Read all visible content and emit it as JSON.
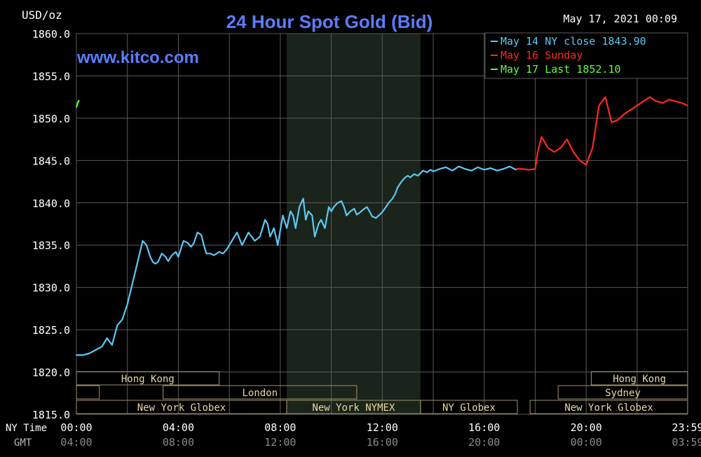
{
  "header": {
    "units": "USD/oz",
    "title": "24 Hour Spot Gold (Bid)",
    "timestamp": "May 17, 2021 00:09",
    "website": "www.kitco.com"
  },
  "legend": [
    {
      "label": "May 14 NY close 1843.90",
      "color": "#5bc8f5"
    },
    {
      "label": "May 16 Sunday",
      "color": "#ff2a1a"
    },
    {
      "label": "May 17 Last 1852.10",
      "color": "#5dff3a"
    }
  ],
  "colors": {
    "background": "#000000",
    "grid": "#5a5a5a",
    "shaded_session": "#1a241a",
    "title": "#5a7dff",
    "website": "#5a7dff",
    "session_border": "#a0946a",
    "session_text": "#e8d8a0",
    "axis_text": "#ffffff",
    "gmt_text": "#8a8a8a"
  },
  "axis_labels": {
    "ny_time": "NY Time",
    "gmt": "GMT"
  },
  "sessions": [
    {
      "label": "Hong Kong",
      "start": 0.0,
      "end": 5.6,
      "row": 0
    },
    {
      "label": "",
      "start": 0.0,
      "end": 0.9,
      "row": 1
    },
    {
      "label": "London",
      "start": 3.4,
      "end": 11.0,
      "row": 1
    },
    {
      "label": "New York Globex",
      "start": 0.0,
      "end": 8.25,
      "row": 2
    },
    {
      "label": "New York NYMEX",
      "start": 8.25,
      "end": 13.5,
      "row": 2
    },
    {
      "label": "NY Globex",
      "start": 13.5,
      "end": 17.3,
      "row": 2
    },
    {
      "label": "Hong Kong",
      "start": 20.2,
      "end": 23.98,
      "row": 0
    },
    {
      "label": "Sydney",
      "start": 18.9,
      "end": 23.98,
      "row": 1
    },
    {
      "label": "New York Globex",
      "start": 17.8,
      "end": 23.98,
      "row": 2
    }
  ],
  "chart_data": {
    "type": "line",
    "title": "24 Hour Spot Gold (Bid)",
    "ylabel": "USD/oz",
    "ylim": [
      1815.0,
      1860.0
    ],
    "xlim": [
      0,
      23.983
    ],
    "y_ticks": [
      "1860.0",
      "1855.0",
      "1850.0",
      "1845.0",
      "1840.0",
      "1835.0",
      "1830.0",
      "1825.0",
      "1820.0",
      "1815.0"
    ],
    "x_ticks_ny": [
      "00:00",
      "04:00",
      "08:00",
      "12:00",
      "16:00",
      "20:00",
      "23:59"
    ],
    "x_ticks_gmt": [
      "04:00",
      "08:00",
      "12:00",
      "16:00",
      "20:00",
      "00:00",
      "03:59"
    ],
    "shaded_region": [
      8.25,
      13.5
    ],
    "grid": true,
    "legend_position": "top-right",
    "series": [
      {
        "name": "May 14 NY close 1843.90",
        "color": "#5bc8f5",
        "x": [
          0.0,
          0.25,
          0.5,
          0.75,
          1.0,
          1.2,
          1.4,
          1.6,
          1.8,
          2.0,
          2.2,
          2.4,
          2.6,
          2.75,
          2.9,
          3.0,
          3.1,
          3.2,
          3.35,
          3.5,
          3.6,
          3.75,
          3.9,
          4.0,
          4.2,
          4.35,
          4.5,
          4.6,
          4.75,
          4.9,
          5.0,
          5.1,
          5.25,
          5.4,
          5.5,
          5.6,
          5.75,
          5.9,
          6.1,
          6.3,
          6.5,
          6.75,
          7.0,
          7.2,
          7.4,
          7.5,
          7.6,
          7.75,
          7.9,
          8.0,
          8.1,
          8.25,
          8.4,
          8.5,
          8.6,
          8.75,
          8.9,
          9.0,
          9.1,
          9.25,
          9.35,
          9.5,
          9.6,
          9.75,
          9.9,
          10.0,
          10.1,
          10.25,
          10.4,
          10.5,
          10.6,
          10.75,
          10.9,
          11.0,
          11.1,
          11.25,
          11.4,
          11.5,
          11.6,
          11.75,
          11.9,
          12.0,
          12.1,
          12.25,
          12.4,
          12.5,
          12.6,
          12.75,
          12.9,
          13.0,
          13.1,
          13.25,
          13.4,
          13.5,
          13.6,
          13.75,
          13.9,
          14.0,
          14.25,
          14.5,
          14.75,
          15.0,
          15.25,
          15.5,
          15.75,
          16.0,
          16.25,
          16.5,
          16.75,
          17.0,
          17.25
        ],
        "y": [
          1822.0,
          1822.0,
          1822.2,
          1822.6,
          1823.0,
          1824.0,
          1823.2,
          1825.5,
          1826.2,
          1828.0,
          1830.5,
          1833.0,
          1835.5,
          1835.0,
          1833.6,
          1833.0,
          1832.8,
          1833.0,
          1834.0,
          1833.6,
          1833.1,
          1833.8,
          1834.2,
          1833.6,
          1835.5,
          1835.3,
          1834.8,
          1835.2,
          1836.5,
          1836.2,
          1835.0,
          1834.0,
          1834.0,
          1833.8,
          1834.0,
          1834.2,
          1834.0,
          1834.5,
          1835.5,
          1836.5,
          1835.0,
          1836.5,
          1835.5,
          1836.0,
          1838.0,
          1837.5,
          1836.0,
          1837.0,
          1835.0,
          1836.8,
          1838.5,
          1837.0,
          1839.0,
          1838.5,
          1837.0,
          1839.5,
          1840.5,
          1838.0,
          1839.0,
          1838.5,
          1836.0,
          1837.5,
          1838.0,
          1837.0,
          1839.5,
          1839.0,
          1839.5,
          1840.0,
          1840.2,
          1839.5,
          1838.5,
          1839.0,
          1839.3,
          1838.6,
          1838.8,
          1839.2,
          1839.5,
          1839.0,
          1838.4,
          1838.2,
          1838.6,
          1838.9,
          1839.3,
          1840.0,
          1840.5,
          1841.0,
          1841.8,
          1842.5,
          1843.0,
          1843.2,
          1843.0,
          1843.4,
          1843.2,
          1843.5,
          1843.8,
          1843.6,
          1843.9,
          1843.7,
          1844.0,
          1844.2,
          1843.8,
          1844.3,
          1844.0,
          1843.8,
          1844.2,
          1843.9,
          1844.1,
          1843.8,
          1844.0,
          1844.3,
          1843.9
        ],
        "shifted_note": ""
      },
      {
        "name": "May 16 Sunday",
        "color": "#ff2a1a",
        "x": [
          17.25,
          17.5,
          17.75,
          18.0,
          18.1,
          18.25,
          18.5,
          18.75,
          19.0,
          19.25,
          19.5,
          19.75,
          20.0,
          20.25,
          20.5,
          20.75,
          21.0,
          21.25,
          21.5,
          21.75,
          22.0,
          22.25,
          22.5,
          22.75,
          23.0,
          23.25,
          23.5,
          23.75,
          23.98
        ],
        "y": [
          1844.0,
          1844.0,
          1843.9,
          1844.0,
          1846.0,
          1847.8,
          1846.5,
          1846.0,
          1846.5,
          1847.5,
          1846.0,
          1845.0,
          1844.5,
          1846.5,
          1851.5,
          1852.5,
          1849.5,
          1849.8,
          1850.5,
          1851.0,
          1851.5,
          1852.0,
          1852.5,
          1852.0,
          1851.8,
          1852.2,
          1852.0,
          1851.8,
          1851.5
        ]
      },
      {
        "name": "May 17 Last 1852.10",
        "color": "#5dff3a",
        "x": [
          0.0,
          0.05,
          0.1
        ],
        "y": [
          1851.3,
          1851.8,
          1852.1
        ]
      }
    ]
  }
}
